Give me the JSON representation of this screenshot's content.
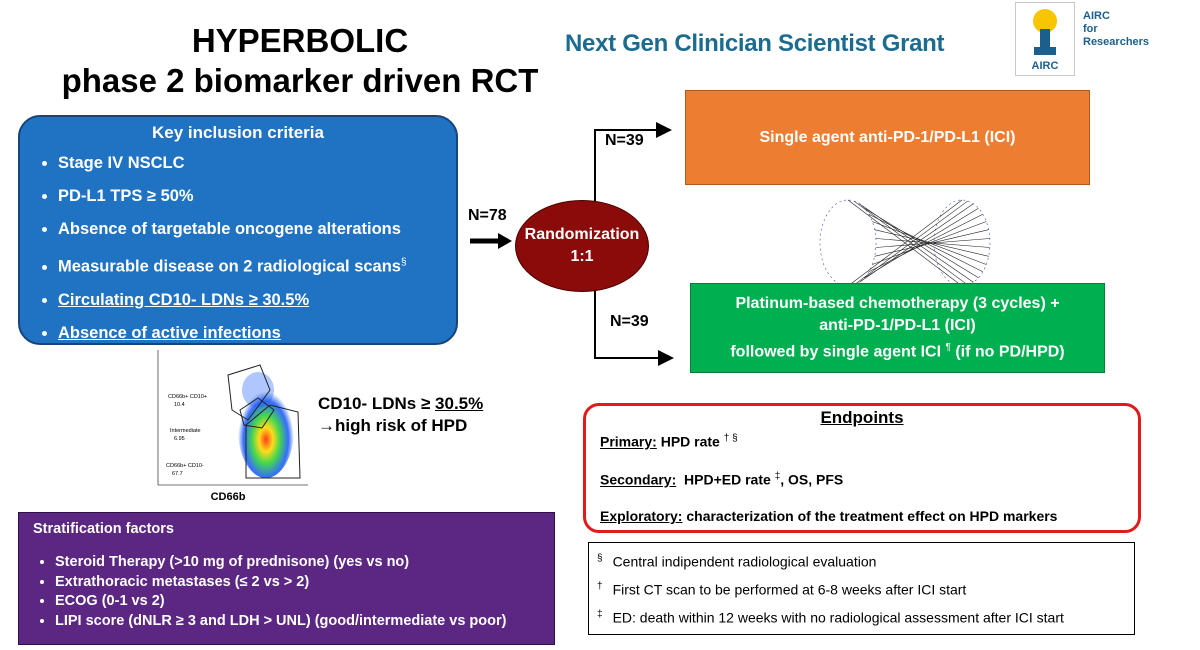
{
  "header": {
    "title_lines": [
      "HYPERBOLIC",
      "phase 2 biomarker driven RCT"
    ],
    "grant": "Next Gen Clinician Scientist Grant",
    "logo_lines": [
      "AIRC",
      "for",
      "Researchers"
    ],
    "logo_badge": "AIRC"
  },
  "inclusion": {
    "title": "Key inclusion criteria",
    "items": [
      {
        "text": "Stage IV NSCLC"
      },
      {
        "text": "PD-L1 TPS ≥ 50%"
      },
      {
        "text": "Absence of targetable oncogene alterations"
      },
      {
        "text": "Measurable disease on 2 radiological scans",
        "sup": "§"
      },
      {
        "text": "Circulating CD10- LDNs ≥ 30.5%"
      },
      {
        "text": "Absence of active infections"
      }
    ]
  },
  "flow": {
    "total": "N=78",
    "randomization": [
      "Randomization",
      "1:1"
    ],
    "arms": [
      {
        "n": "N=39",
        "lines": [
          "Single agent anti-PD-1/PD-L1 (ICI)"
        ]
      },
      {
        "n": "N=39",
        "lines": [
          "Platinum-based chemotherapy (3 cycles) +",
          "anti-PD-1/PD-L1 (ICI)",
          "followed by single agent ICI",
          "(if no PD/HPD)"
        ],
        "sup": "¶"
      }
    ]
  },
  "cytometry": {
    "gates": [
      {
        "label": "CD66b+ CD10+",
        "value": "10.4"
      },
      {
        "label": "Intermediate",
        "value": "6.95"
      },
      {
        "label": "CD66b+ CD10-",
        "value": "67.7"
      }
    ],
    "x_label": "CD66b"
  },
  "cd10_note": {
    "prefix": "CD10- LDNs ≥ ",
    "threshold": "30.5%",
    "line2": "→high risk of HPD"
  },
  "endpoints": {
    "title": "Endpoints",
    "primary": {
      "label": "Primary:",
      "text": "HPD rate",
      "sup": "† §"
    },
    "secondary": {
      "label": "Secondary:",
      "text": "HPD+ED rate",
      "sup": "‡",
      "rest": ", OS, PFS"
    },
    "exploratory": {
      "label": "Exploratory:",
      "text": "characterization of the treatment effect on HPD markers"
    }
  },
  "stratification": {
    "title": "Stratification factors",
    "items": [
      "Steroid Therapy (>10 mg of prednisone) (yes vs no)",
      "Extrathoracic metastases (≤ 2 vs > 2)",
      "ECOG (0-1 vs 2)",
      "LIPI score (dNLR ≥ 3 and LDH > UNL) (good/intermediate vs poor)"
    ]
  },
  "footnotes": [
    {
      "symbol": "§",
      "text": "Central indipendent radiological evaluation"
    },
    {
      "symbol": "†",
      "text": "First CT scan to be performed at 6-8 weeks after ICI start"
    },
    {
      "symbol": "‡",
      "text": "ED: death within 12 weeks with no radiological assessment after ICI start"
    }
  ]
}
